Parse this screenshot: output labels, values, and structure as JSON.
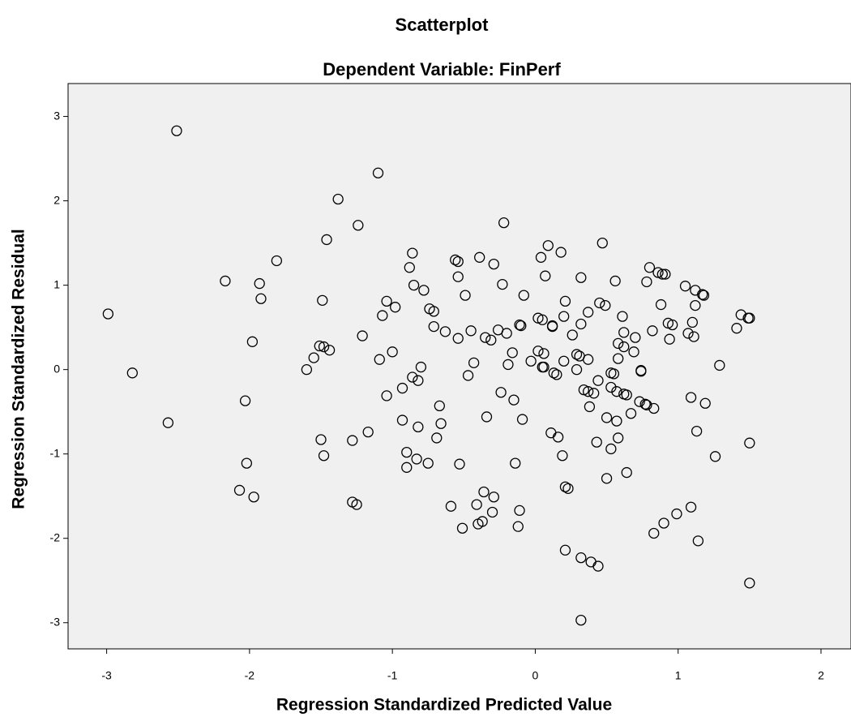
{
  "chart_data": {
    "type": "scatter",
    "title": "Scatterplot",
    "subtitle": "Dependent Variable: FinPerf",
    "x_label": "Regression Standardized Predicted Value",
    "y_label": "Regression Standardized Residual",
    "xlim": [
      -3.27,
      2.21
    ],
    "ylim": [
      -3.31,
      3.39
    ],
    "xticks": [
      -3,
      -2,
      -1,
      0,
      1,
      2
    ],
    "yticks": [
      -3,
      -2,
      -1,
      0,
      1,
      2,
      3
    ],
    "color": "#000000",
    "background": "#f0f0f0",
    "x": [
      -2.99,
      -2.82,
      -2.57,
      -2.51,
      -2.17,
      -2.07,
      -2.03,
      -2.02,
      -1.98,
      -1.97,
      -1.93,
      -1.92,
      -1.81,
      -1.6,
      -1.55,
      -1.51,
      -1.5,
      -1.49,
      -1.48,
      -1.48,
      -1.46,
      -1.44,
      -1.38,
      -1.28,
      -1.28,
      -1.25,
      -1.24,
      -1.21,
      -1.17,
      -1.1,
      -1.09,
      -1.07,
      -1.04,
      -1.04,
      -1.0,
      -0.98,
      -0.93,
      -0.93,
      -0.9,
      -0.9,
      -0.88,
      -0.86,
      -0.86,
      -0.85,
      -0.83,
      -0.82,
      -0.82,
      -0.8,
      -0.78,
      -0.75,
      -0.74,
      -0.71,
      -0.71,
      -0.69,
      -0.67,
      -0.66,
      -0.63,
      -0.59,
      -0.56,
      -0.54,
      -0.54,
      -0.54,
      -0.53,
      -0.51,
      -0.49,
      -0.47,
      -0.45,
      -0.43,
      -0.41,
      -0.4,
      -0.39,
      -0.37,
      -0.36,
      -0.35,
      -0.34,
      -0.31,
      -0.3,
      -0.29,
      -0.29,
      -0.26,
      -0.24,
      -0.23,
      -0.22,
      -0.2,
      -0.19,
      -0.16,
      -0.15,
      -0.14,
      -0.12,
      -0.11,
      -0.11,
      -0.1,
      -0.09,
      -0.08,
      -0.03,
      0.02,
      0.02,
      0.04,
      0.05,
      0.05,
      0.06,
      0.06,
      0.07,
      0.09,
      0.11,
      0.12,
      0.12,
      0.13,
      0.15,
      0.16,
      0.18,
      0.19,
      0.2,
      0.2,
      0.21,
      0.21,
      0.21,
      0.23,
      0.26,
      0.29,
      0.29,
      0.31,
      0.32,
      0.32,
      0.32,
      0.32,
      0.34,
      0.37,
      0.37,
      0.37,
      0.38,
      0.39,
      0.41,
      0.43,
      0.44,
      0.44,
      0.45,
      0.47,
      0.49,
      0.5,
      0.5,
      0.53,
      0.53,
      0.53,
      0.55,
      0.56,
      0.57,
      0.57,
      0.58,
      0.58,
      0.58,
      0.61,
      0.62,
      0.62,
      0.62,
      0.64,
      0.64,
      0.67,
      0.69,
      0.7,
      0.73,
      0.74,
      0.74,
      0.77,
      0.78,
      0.78,
      0.8,
      0.82,
      0.83,
      0.83,
      0.86,
      0.88,
      0.89,
      0.9,
      0.91,
      0.93,
      0.94,
      0.96,
      0.99,
      1.05,
      1.07,
      1.09,
      1.09,
      1.1,
      1.11,
      1.12,
      1.12,
      1.13,
      1.14,
      1.17,
      1.18,
      1.19,
      1.26,
      1.29,
      1.41,
      1.44,
      1.49,
      1.5,
      1.5,
      1.5
    ],
    "y": [
      0.66,
      -0.04,
      -0.63,
      2.83,
      1.05,
      -1.43,
      -0.37,
      -1.11,
      0.33,
      -1.51,
      1.02,
      0.84,
      1.29,
      0.0,
      0.14,
      0.28,
      -0.83,
      0.82,
      -1.02,
      0.27,
      1.54,
      0.23,
      2.02,
      -0.84,
      -1.57,
      -1.6,
      1.71,
      0.4,
      -0.74,
      2.33,
      0.12,
      0.64,
      0.81,
      -0.31,
      0.21,
      0.74,
      -0.22,
      -0.6,
      -0.98,
      -1.16,
      1.21,
      1.38,
      -0.09,
      1.0,
      -1.06,
      -0.68,
      -0.13,
      0.03,
      0.94,
      -1.11,
      0.72,
      0.69,
      0.51,
      -0.81,
      -0.43,
      -0.64,
      0.45,
      -1.62,
      1.3,
      1.28,
      0.37,
      1.1,
      -1.12,
      -1.88,
      0.88,
      -0.07,
      0.46,
      0.08,
      -1.6,
      -1.83,
      1.33,
      -1.8,
      -1.45,
      0.38,
      -0.56,
      0.35,
      -1.69,
      -1.51,
      1.25,
      0.47,
      -0.27,
      1.01,
      1.74,
      0.43,
      0.06,
      0.2,
      -0.36,
      -1.11,
      -1.86,
      -1.67,
      0.53,
      0.52,
      -0.59,
      0.88,
      0.1,
      0.61,
      0.22,
      1.33,
      0.59,
      0.03,
      0.19,
      0.03,
      1.11,
      1.47,
      -0.75,
      0.51,
      0.52,
      -0.04,
      -0.06,
      -0.8,
      1.39,
      -1.02,
      0.1,
      0.63,
      0.81,
      -2.14,
      -1.39,
      -1.41,
      0.41,
      0.0,
      0.18,
      0.16,
      1.09,
      -2.23,
      -2.97,
      0.54,
      -0.24,
      0.12,
      -0.26,
      0.68,
      -0.44,
      -2.28,
      -0.28,
      -0.86,
      -2.33,
      -0.13,
      0.79,
      1.5,
      0.76,
      -0.57,
      -1.29,
      -0.04,
      -0.21,
      -0.94,
      -0.05,
      1.05,
      -0.26,
      -0.61,
      -0.81,
      0.13,
      0.31,
      0.63,
      0.27,
      0.44,
      -0.29,
      -0.3,
      -1.22,
      -0.52,
      0.21,
      0.38,
      -0.38,
      -0.01,
      -0.02,
      -0.41,
      1.04,
      -0.42,
      1.21,
      0.46,
      -0.46,
      -1.94,
      1.15,
      0.77,
      1.13,
      -1.82,
      1.13,
      0.55,
      0.36,
      0.53,
      -1.71,
      0.99,
      0.43,
      -0.33,
      -1.63,
      0.56,
      0.39,
      0.76,
      0.94,
      -0.73,
      -2.03,
      0.89,
      0.88,
      -0.4,
      -1.03,
      0.05,
      0.49,
      0.65,
      0.61,
      0.61,
      -2.53,
      -0.87
    ]
  }
}
